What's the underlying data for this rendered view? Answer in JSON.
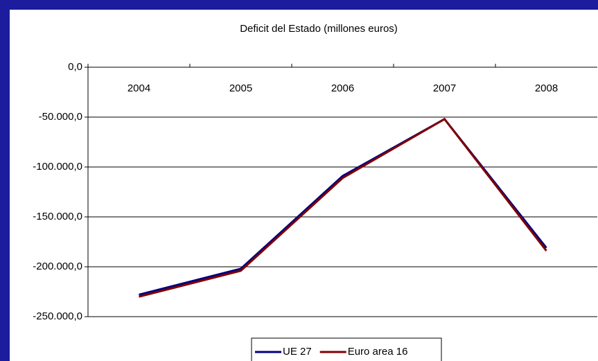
{
  "chart_data": {
    "type": "line",
    "title": "Deficit del Estado (millones euros)",
    "categories": [
      "2004",
      "2005",
      "2006",
      "2007",
      "2008"
    ],
    "series": [
      {
        "name": "UE 27",
        "color": "#000080",
        "values": [
          -228000,
          -202000,
          -109000,
          -52000,
          -181000
        ]
      },
      {
        "name": "Euro area 16",
        "color": "#800000",
        "values": [
          -230000,
          -204000,
          -111000,
          -52000,
          -184000
        ]
      }
    ],
    "ylim": [
      -250000,
      0
    ],
    "yticks": [
      {
        "value": 0,
        "label": "0,0"
      },
      {
        "value": -50000,
        "label": "-50.000,0"
      },
      {
        "value": -100000,
        "label": "-100.000,0"
      },
      {
        "value": -150000,
        "label": "-150.000,0"
      },
      {
        "value": -200000,
        "label": "-200.000,0"
      },
      {
        "value": -250000,
        "label": "-250.000,0"
      }
    ],
    "grid": true,
    "legend": "bottom"
  }
}
